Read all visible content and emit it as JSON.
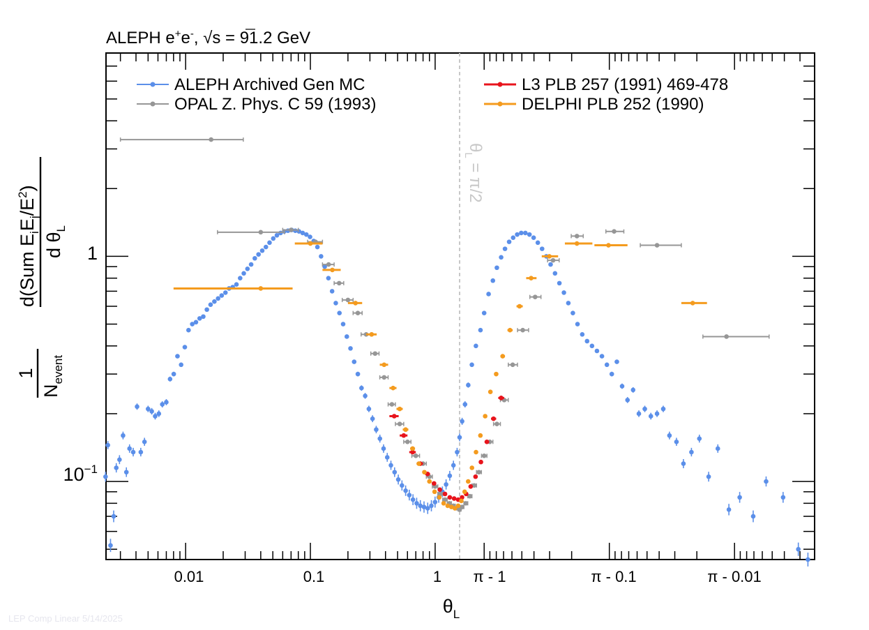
{
  "chart_data": {
    "type": "scatter",
    "title": "ALEPH e⁺e⁻, √s = 91.2 GeV",
    "title_parts": {
      "main": "ALEPH e",
      "sup1": "+",
      "mid": "e",
      "sup2": "-",
      "tail": ", ",
      "sqrt": "√",
      "s_eq": "s = 91.2 GeV"
    },
    "xlabel": "θ_L",
    "xlabel_parts": {
      "main": "θ",
      "sub": "L"
    },
    "ylabel": "1/N_event · d(Sum E_iE_j/E²)/dθ_L",
    "ylabel_parts": {
      "one": "1",
      "n": "N",
      "n_sub": "event",
      "num_a": "d(Sum E",
      "num_sub_i": "i",
      "num_b": "E",
      "num_sub_j": "j",
      "num_c": "/E",
      "num_sup": "2",
      "num_d": ")",
      "den_a": "d θ",
      "den_sub": "L"
    },
    "x_scale": "symmetric-log-about-pi/2",
    "xlim": [
      0.0023,
      3.1393
    ],
    "ylim": [
      0.045,
      8.0
    ],
    "y_scale": "log",
    "x_tick_labels": [
      "0.01",
      "0.1",
      "1",
      "π - 1",
      "π - 0.1",
      "π - 0.01"
    ],
    "x_tick_values": [
      0.01,
      0.1,
      1,
      2.14159,
      3.04159,
      3.13159
    ],
    "y_tick_labels": [
      "1",
      "10⁻¹"
    ],
    "y_tick_values": [
      1,
      0.1
    ],
    "y_tick_label_parts": {
      "ten": "10",
      "exp": "−1"
    },
    "vline": {
      "x": 1.5708,
      "label": "θ_L = π/2",
      "label_parts": {
        "a": "θ",
        "sub": "L",
        "b": " = π/2"
      }
    },
    "footnote": "LEP Comp Linear 5/14/2025",
    "series": [
      {
        "name": "ALEPH Archived Gen MC",
        "color": "#5b8fe9",
        "has_xerr": false,
        "x": [
          0.00228,
          0.00238,
          0.0025,
          0.00265,
          0.00278,
          0.00295,
          0.00315,
          0.00335,
          0.00355,
          0.0038,
          0.00408,
          0.00437,
          0.00468,
          0.005,
          0.00535,
          0.0057,
          0.0061,
          0.0065,
          0.007,
          0.0075,
          0.00803,
          0.0086,
          0.0092,
          0.00985,
          0.01055,
          0.0113,
          0.0121,
          0.01295,
          0.01385,
          0.0148,
          0.01585,
          0.017,
          0.0182,
          0.01945,
          0.02085,
          0.0223,
          0.02385,
          0.02555,
          0.02735,
          0.02925,
          0.0313,
          0.0335,
          0.03585,
          0.0384,
          0.0411,
          0.044,
          0.04705,
          0.0504,
          0.0539,
          0.0577,
          0.06175,
          0.0661,
          0.07075,
          0.0757,
          0.08105,
          0.0867,
          0.0928,
          0.09935,
          0.1063,
          0.1138,
          0.1218,
          0.1303,
          0.1395,
          0.1493,
          0.1598,
          0.171,
          0.183,
          0.1959,
          0.2096,
          0.2243,
          0.2401,
          0.2569,
          0.2749,
          0.2943,
          0.3149,
          0.337,
          0.3607,
          0.386,
          0.4131,
          0.4421,
          0.4732,
          0.5064,
          0.542,
          0.5801,
          0.6208,
          0.6644,
          0.7111,
          0.761,
          0.8145,
          0.8717,
          0.9329,
          0.9985,
          1.0686,
          1.1437,
          1.224,
          1.31,
          1.402,
          1.5,
          1.5708,
          1.6416,
          1.7196,
          1.8016,
          1.8876,
          1.9776,
          2.0716,
          2.14159,
          2.22,
          2.29,
          2.35,
          2.41,
          2.46,
          2.51,
          2.555,
          2.597,
          2.636,
          2.673,
          2.707,
          2.739,
          2.769,
          2.797,
          2.823,
          2.847,
          2.87,
          2.891,
          2.911,
          2.929,
          2.946,
          2.962,
          2.977,
          2.991,
          3.004,
          3.016,
          3.027,
          3.037,
          3.046,
          3.0545,
          3.0625,
          3.07,
          3.077,
          3.0835,
          3.0895,
          3.095,
          3.1,
          3.1045,
          3.1085,
          3.1125,
          3.116,
          3.1195,
          3.1225,
          3.1255,
          3.128,
          3.1305,
          3.1325,
          3.1345,
          3.136,
          3.1375,
          3.1385,
          3.139
        ],
        "y": [
          0.105,
          0.145,
          0.052,
          0.07,
          0.115,
          0.125,
          0.16,
          0.11,
          0.14,
          0.135,
          0.215,
          0.135,
          0.15,
          0.21,
          0.205,
          0.195,
          0.2,
          0.22,
          0.225,
          0.285,
          0.3,
          0.36,
          0.33,
          0.395,
          0.47,
          0.5,
          0.51,
          0.53,
          0.54,
          0.58,
          0.61,
          0.63,
          0.65,
          0.67,
          0.69,
          0.72,
          0.73,
          0.75,
          0.8,
          0.84,
          0.88,
          0.92,
          0.98,
          1.02,
          1.06,
          1.1,
          1.15,
          1.2,
          1.24,
          1.27,
          1.29,
          1.3,
          1.31,
          1.3,
          1.29,
          1.27,
          1.25,
          1.22,
          1.17,
          1.1,
          1.0,
          0.9,
          0.8,
          0.7,
          0.62,
          0.56,
          0.5,
          0.44,
          0.39,
          0.34,
          0.3,
          0.26,
          0.24,
          0.21,
          0.19,
          0.17,
          0.155,
          0.14,
          0.128,
          0.118,
          0.11,
          0.102,
          0.096,
          0.091,
          0.087,
          0.083,
          0.08,
          0.078,
          0.077,
          0.076,
          0.078,
          0.081,
          0.085,
          0.09,
          0.097,
          0.106,
          0.118,
          0.135,
          0.157,
          0.185,
          0.22,
          0.268,
          0.33,
          0.4,
          0.47,
          0.56,
          0.68,
          0.78,
          0.89,
          0.99,
          1.08,
          1.16,
          1.21,
          1.25,
          1.27,
          1.27,
          1.25,
          1.21,
          1.15,
          1.08,
          1.0,
          0.92,
          0.84,
          0.76,
          0.69,
          0.62,
          0.56,
          0.5,
          0.45,
          0.42,
          0.4,
          0.38,
          0.36,
          0.33,
          0.3,
          0.34,
          0.265,
          0.23,
          0.255,
          0.2,
          0.21,
          0.195,
          0.2,
          0.21,
          0.16,
          0.15,
          0.12,
          0.135,
          0.155,
          0.105,
          0.14,
          0.075,
          0.085,
          0.07,
          0.1,
          0.085,
          0.05,
          0.045
        ]
      },
      {
        "name": "OPAL Z. Phys. C 59 (1993)",
        "color": "#969696",
        "has_xerr": true,
        "x": [
          0.016,
          0.04,
          0.07,
          0.11,
          0.14,
          0.17,
          0.2,
          0.24,
          0.28,
          0.33,
          0.39,
          0.45,
          0.52,
          0.6,
          0.7,
          0.8,
          0.9,
          1.0,
          1.1,
          1.2,
          1.3,
          1.4,
          1.5,
          1.5708,
          1.64,
          1.74,
          1.84,
          1.94,
          2.04,
          2.1416,
          2.24,
          2.35,
          2.45,
          2.55,
          2.65,
          2.75,
          2.86,
          2.96,
          3.05,
          3.1,
          3.13
        ],
        "y": [
          3.3,
          1.28,
          1.31,
          1.16,
          0.92,
          0.76,
          0.64,
          0.56,
          0.45,
          0.37,
          0.29,
          0.22,
          0.18,
          0.15,
          0.13,
          0.12,
          0.105,
          0.095,
          0.088,
          0.083,
          0.08,
          0.078,
          0.076,
          0.075,
          0.077,
          0.08,
          0.086,
          0.096,
          0.11,
          0.13,
          0.15,
          0.18,
          0.23,
          0.33,
          0.47,
          0.66,
          0.96,
          1.23,
          1.29,
          1.12,
          0.44
        ],
        "xerr": [
          0.013,
          0.022,
          0.01,
          0.015,
          0.015,
          0.015,
          0.02,
          0.02,
          0.025,
          0.025,
          0.03,
          0.03,
          0.04,
          0.04,
          0.05,
          0.05,
          0.05,
          0.05,
          0.05,
          0.05,
          0.05,
          0.05,
          0.05,
          0.04,
          0.05,
          0.05,
          0.05,
          0.05,
          0.05,
          0.05,
          0.05,
          0.05,
          0.05,
          0.05,
          0.05,
          0.04,
          0.03,
          0.02,
          0.015,
          0.015,
          0.0063
        ]
      },
      {
        "name": "L3 PLB 257 (1991) 469-478",
        "color": "#e8141c",
        "has_xerr": true,
        "x": [
          0.47,
          0.56,
          0.66,
          0.76,
          0.87,
          0.98,
          1.09,
          1.2,
          1.31,
          1.42,
          1.53,
          1.64,
          1.75,
          1.86,
          1.97,
          2.08,
          2.19,
          2.3,
          2.41
        ],
        "y": [
          0.195,
          0.16,
          0.135,
          0.12,
          0.108,
          0.098,
          0.092,
          0.088,
          0.085,
          0.084,
          0.083,
          0.085,
          0.088,
          0.095,
          0.105,
          0.122,
          0.15,
          0.19,
          0.235
        ],
        "xerr": [
          0.04,
          0.04,
          0.04,
          0.04,
          0.04,
          0.04,
          0.04,
          0.04,
          0.04,
          0.04,
          0.04,
          0.04,
          0.04,
          0.04,
          0.04,
          0.04,
          0.04,
          0.04,
          0.04
        ]
      },
      {
        "name": "DELPHI PLB 252 (1990)",
        "color": "#f49b1e",
        "has_xerr": true,
        "x": [
          0.04,
          0.1,
          0.15,
          0.23,
          0.31,
          0.39,
          0.46,
          0.52,
          0.58,
          0.66,
          0.74,
          0.82,
          0.9,
          0.99,
          1.08,
          1.17,
          1.26,
          1.35,
          1.44,
          1.53,
          1.62,
          1.71,
          1.8,
          1.89,
          1.98,
          2.07,
          2.16,
          2.25,
          2.34,
          2.43,
          2.52,
          2.62,
          2.72,
          2.84,
          2.96,
          3.04,
          3.12
        ],
        "y": [
          0.72,
          1.14,
          0.87,
          0.62,
          0.45,
          0.33,
          0.26,
          0.21,
          0.17,
          0.14,
          0.12,
          0.11,
          0.1,
          0.09,
          0.085,
          0.08,
          0.078,
          0.077,
          0.076,
          0.078,
          0.082,
          0.09,
          0.1,
          0.115,
          0.135,
          0.16,
          0.195,
          0.25,
          0.3,
          0.36,
          0.47,
          0.6,
          0.8,
          1.0,
          1.14,
          1.12,
          0.62
        ],
        "xerr": [
          0.032,
          0.025,
          0.025,
          0.03,
          0.03,
          0.03,
          0.03,
          0.03,
          0.03,
          0.03,
          0.03,
          0.03,
          0.03,
          0.03,
          0.03,
          0.03,
          0.03,
          0.03,
          0.03,
          0.03,
          0.03,
          0.03,
          0.03,
          0.03,
          0.03,
          0.03,
          0.03,
          0.03,
          0.03,
          0.03,
          0.03,
          0.03,
          0.04,
          0.045,
          0.045,
          0.03,
          0.005
        ]
      }
    ],
    "legend_placement": "top, two columns"
  }
}
